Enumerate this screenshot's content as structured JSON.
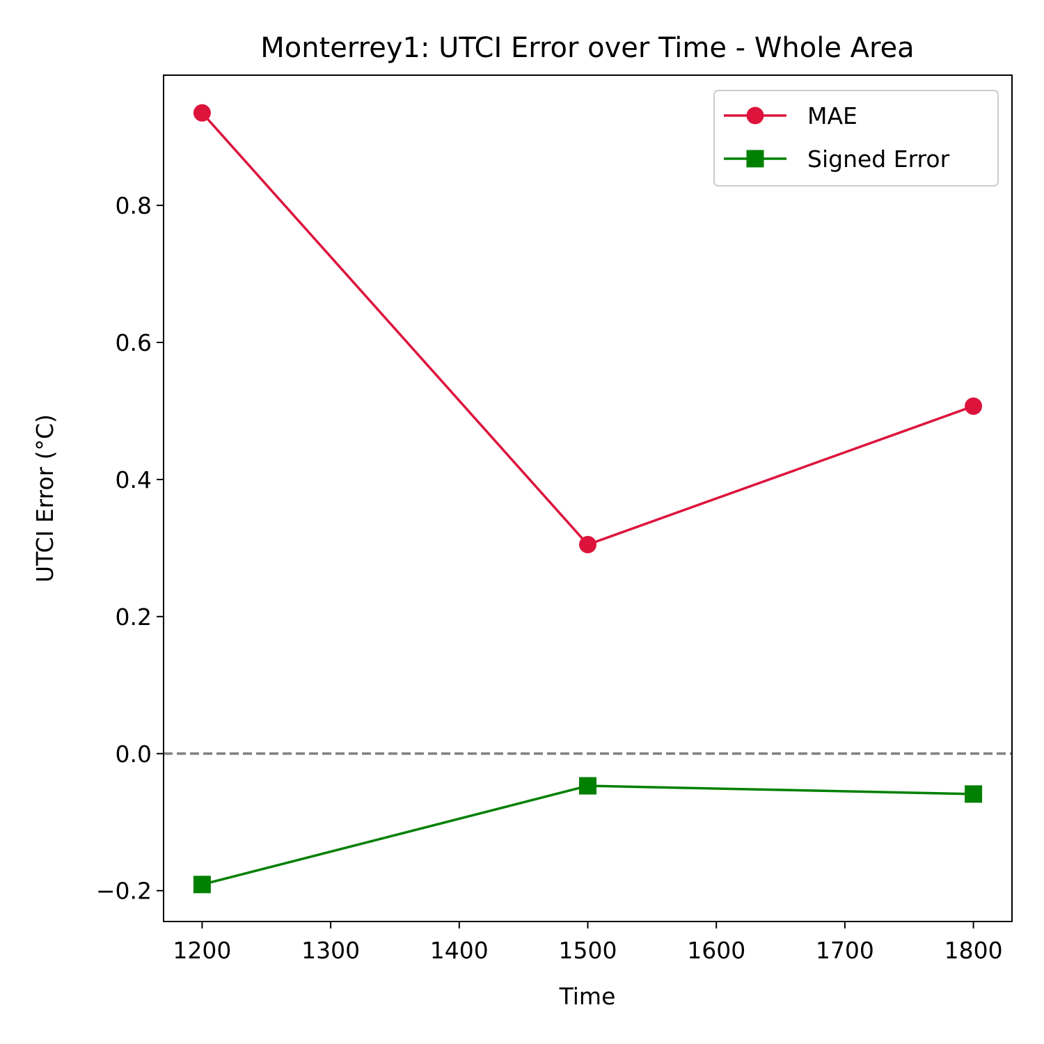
{
  "chart_data": {
    "type": "line",
    "title": "Monterrey1: UTCI Error over Time - Whole Area",
    "xlabel": "Time",
    "ylabel": "UTCI Error (°C)",
    "x": [
      1200,
      1500,
      1800
    ],
    "xlim": [
      1170,
      1830
    ],
    "ylim": [
      -0.245,
      0.99
    ],
    "xticks": [
      1200,
      1300,
      1400,
      1500,
      1600,
      1700,
      1800
    ],
    "xtick_labels": [
      "1200",
      "1300",
      "1400",
      "1500",
      "1600",
      "1700",
      "1800"
    ],
    "yticks": [
      -0.2,
      0.0,
      0.2,
      0.4,
      0.6,
      0.8
    ],
    "ytick_labels": [
      "−0.2",
      "0.0",
      "0.2",
      "0.4",
      "0.6",
      "0.8"
    ],
    "grid": false,
    "legend_position": "upper right",
    "reference_line": {
      "y": 0.0,
      "style": "dashed",
      "color": "#808080"
    },
    "series": [
      {
        "name": "MAE",
        "values": [
          0.935,
          0.305,
          0.507
        ],
        "color": "#dc143c",
        "marker": "circle"
      },
      {
        "name": "Signed Error",
        "values": [
          -0.191,
          -0.047,
          -0.059
        ],
        "color": "#008000",
        "marker": "square"
      }
    ]
  }
}
